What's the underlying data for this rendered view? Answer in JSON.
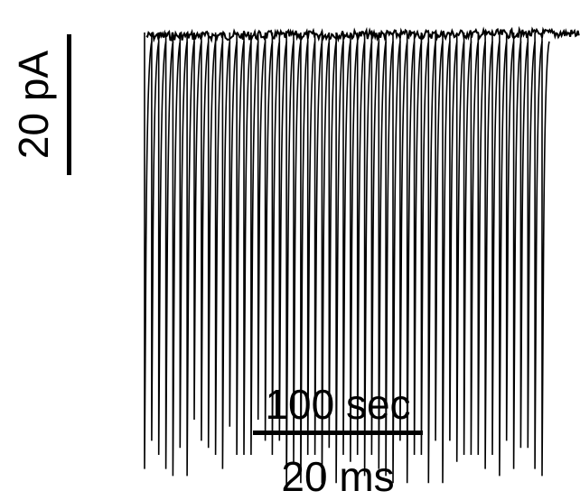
{
  "chart_data": {
    "type": "line",
    "title": "",
    "y_scale_bar_label": "20 pA",
    "x_scale_bar_label_top": "100 sec",
    "x_scale_bar_label_bottom": "20 ms",
    "series": [
      {
        "values_pA": [
          -62,
          -58,
          -60,
          -62,
          -63,
          -59,
          -63,
          -55,
          -58,
          -59,
          -60,
          -62,
          -56,
          -60,
          -60,
          -60,
          -55,
          -58,
          -60,
          -58,
          -65,
          -61,
          -64,
          -60,
          -60,
          -64,
          -59,
          -64,
          -60,
          -61,
          -60,
          -63,
          -60,
          -62,
          -63,
          -64,
          -58,
          -64,
          -60,
          -60,
          -64,
          -58,
          -64,
          -58,
          -61,
          -60,
          -60,
          -60,
          -62,
          -60,
          -63,
          -58,
          -62,
          -59,
          -59,
          -62,
          -63
        ],
        "event_interval_sec": 7.5
      }
    ],
    "line_color": "#000000"
  }
}
